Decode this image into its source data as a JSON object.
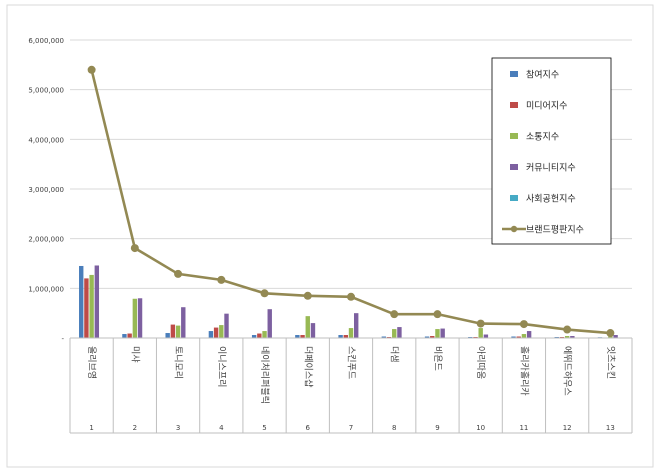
{
  "chart_data": {
    "type": "bar",
    "title": "",
    "xlabel": "",
    "ylabel": "",
    "ylim": [
      0,
      6000000
    ],
    "y_ticks": [
      0,
      1000000,
      2000000,
      3000000,
      4000000,
      5000000,
      6000000
    ],
    "y_tick_labels": [
      "-",
      "1,000,000",
      "2,000,000",
      "3,000,000",
      "4,000,000",
      "5,000,000",
      "6,000,000"
    ],
    "grid": true,
    "legend_position": "top-right",
    "categories": [
      "올리브영",
      "미샤",
      "토니모리",
      "이니스프리",
      "네이처리퍼블릭",
      "더페이스샵",
      "스킨푸드",
      "더샘",
      "비욘드",
      "아리따움",
      "홀리카홀리카",
      "에뛰드하우스",
      "잇츠스킨"
    ],
    "category_numbers": [
      "1",
      "2",
      "3",
      "4",
      "5",
      "6",
      "7",
      "8",
      "9",
      "10",
      "11",
      "12",
      "13"
    ],
    "series": [
      {
        "name": "참여지수",
        "kind": "bar",
        "color": "#4a7ebb",
        "values": [
          1450000,
          80000,
          100000,
          140000,
          60000,
          60000,
          60000,
          30000,
          30000,
          20000,
          30000,
          20000,
          15000
        ]
      },
      {
        "name": "미디어지수",
        "kind": "bar",
        "color": "#be4b48",
        "values": [
          1200000,
          90000,
          270000,
          210000,
          90000,
          60000,
          60000,
          20000,
          40000,
          20000,
          30000,
          20000,
          10000
        ]
      },
      {
        "name": "소통지수",
        "kind": "bar",
        "color": "#98b954",
        "values": [
          1270000,
          790000,
          250000,
          260000,
          140000,
          440000,
          200000,
          180000,
          180000,
          200000,
          80000,
          40000,
          30000
        ]
      },
      {
        "name": "커뮤니티지수",
        "kind": "bar",
        "color": "#7d60a0",
        "values": [
          1460000,
          800000,
          620000,
          490000,
          580000,
          300000,
          500000,
          220000,
          190000,
          70000,
          140000,
          40000,
          60000
        ]
      },
      {
        "name": "사회공헌지수",
        "kind": "bar",
        "color": "#46aac5",
        "values": [
          0,
          0,
          0,
          0,
          0,
          0,
          0,
          0,
          0,
          0,
          0,
          0,
          0
        ]
      },
      {
        "name": "브랜드평판지수",
        "kind": "line",
        "color": "#938953",
        "values": [
          5400000,
          1810000,
          1290000,
          1170000,
          900000,
          850000,
          830000,
          480000,
          480000,
          290000,
          280000,
          170000,
          100000
        ]
      }
    ]
  }
}
